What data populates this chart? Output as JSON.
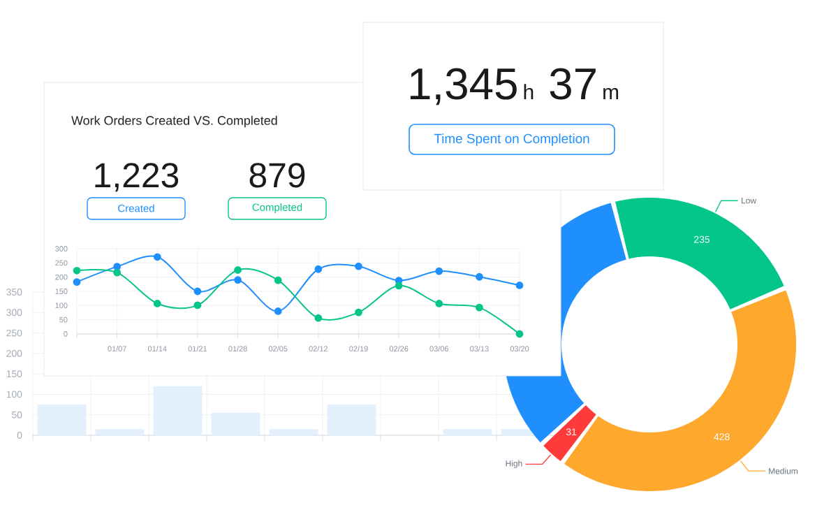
{
  "chart_data": [
    {
      "type": "line",
      "title": "Work Orders Created VS. Completed",
      "annotations": [
        "1,223",
        "879"
      ],
      "categories": [
        null,
        "01/07",
        "01/14",
        "01/21",
        "01/28",
        "02/05",
        "02/12",
        "02/19",
        "02/26",
        "03/06",
        "03/13",
        "03/20"
      ],
      "series": [
        {
          "name": "Created",
          "color": "#1e8ffd",
          "values": [
            183,
            237,
            271,
            150,
            190,
            80,
            228,
            238,
            188,
            221,
            201,
            171
          ]
        },
        {
          "name": "Completed",
          "color": "#06c48a",
          "values": [
            223,
            216,
            107,
            101,
            225,
            189,
            56,
            76,
            170,
            107,
            93,
            0
          ]
        }
      ],
      "ylim": [
        0,
        300
      ],
      "yticks": [
        0,
        50,
        100,
        150,
        200,
        250,
        300
      ],
      "grid": true,
      "marker": "circle",
      "legend": "top"
    },
    {
      "type": "other",
      "title": "Time Spent on Completion",
      "annotations": [
        "1,345",
        "h",
        "37",
        "m"
      ]
    },
    {
      "type": "donut",
      "categories": [
        "Low",
        "Medium",
        "High",
        null
      ],
      "values": [
        235,
        428,
        31,
        340
      ],
      "colors": [
        "#04c58a",
        "#ffa82e",
        "#ff3a3a",
        "#1e8ffd"
      ],
      "value_labels": [
        "235",
        "428",
        "31",
        null
      ]
    },
    {
      "type": "bar",
      "categories": [
        null,
        null,
        null,
        null,
        null,
        null,
        null,
        null,
        null
      ],
      "values": [
        75,
        15,
        120,
        55,
        15,
        75,
        null,
        15,
        15
      ],
      "color": "#e3f0fd",
      "ylim": [
        0,
        350
      ],
      "yticks": [
        0,
        50,
        100,
        150,
        200,
        250,
        300,
        350
      ],
      "grid": true,
      "tick_labels": "y"
    }
  ]
}
